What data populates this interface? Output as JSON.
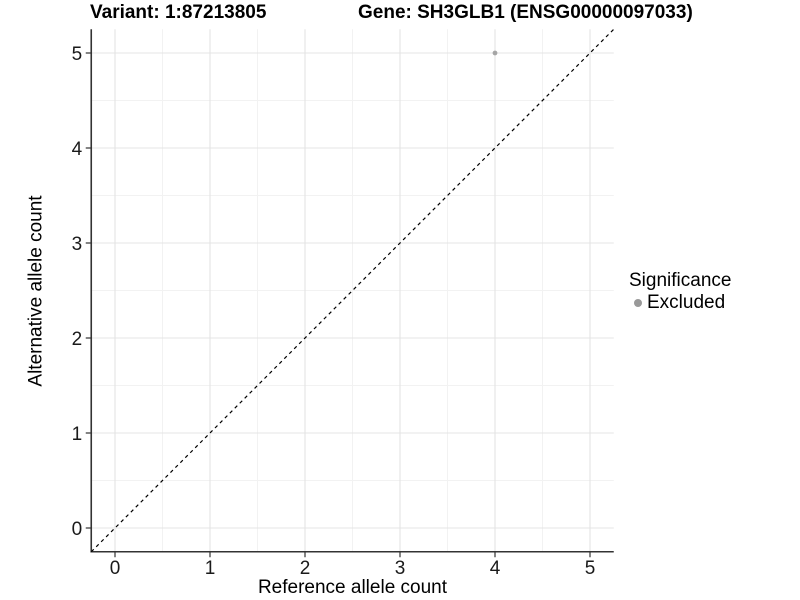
{
  "header": {
    "variant_title": "Variant: 1:87213805",
    "gene_title": "Gene: SH3GLB1 (ENSG00000097033)"
  },
  "legend": {
    "title": "Significance",
    "items": [
      {
        "label": "Excluded",
        "color": "#999999"
      }
    ]
  },
  "colors": {
    "background": "#ffffff",
    "grid_major": "#e4e4e4",
    "grid_minor": "#f2f2f2",
    "axis_line": "#333333",
    "tick_mark": "#333333",
    "tick_label": "#1a1a1a",
    "reference_line": "#000000",
    "point": "#999999"
  },
  "chart_data": {
    "type": "scatter",
    "title": "Variant: 1:87213805 | Gene: SH3GLB1 (ENSG00000097033)",
    "xlabel": "Reference allele count",
    "ylabel": "Alternative allele count",
    "xlim": [
      -0.25,
      5.25
    ],
    "ylim": [
      -0.25,
      5.25
    ],
    "x_ticks": [
      0,
      1,
      2,
      3,
      4,
      5
    ],
    "y_ticks": [
      0,
      1,
      2,
      3,
      4,
      5
    ],
    "grid": {
      "major": true,
      "minor": true
    },
    "legend_position": "right",
    "legend_title": "Significance",
    "series": [
      {
        "name": "Excluded",
        "color": "#999999",
        "points": [
          {
            "x": 4,
            "y": 5
          }
        ]
      }
    ],
    "reference_line": {
      "kind": "identity",
      "equation": "y = x",
      "style": "dashed",
      "color": "#000000"
    }
  }
}
